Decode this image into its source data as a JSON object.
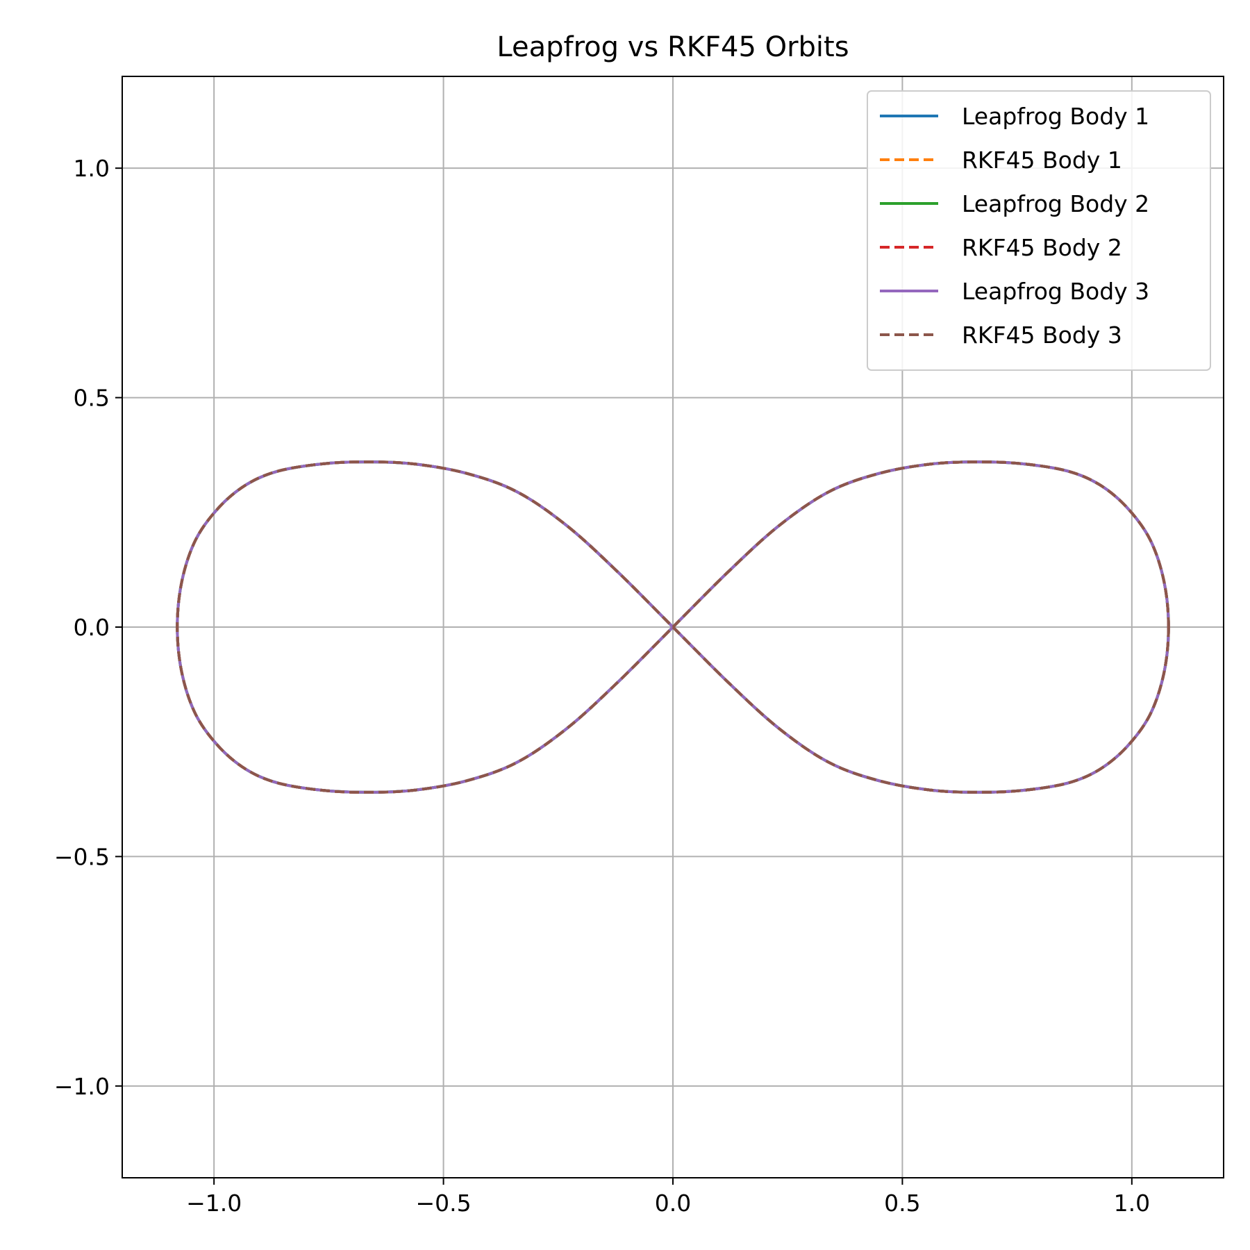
{
  "chart_data": {
    "type": "line",
    "title": "Leapfrog vs RKF45 Orbits",
    "xlabel": "",
    "ylabel": "",
    "xlim": [
      -1.2,
      1.2
    ],
    "ylim": [
      -1.2,
      1.2
    ],
    "xticks": [
      -1.0,
      -0.5,
      0.0,
      0.5,
      1.0
    ],
    "yticks": [
      -1.0,
      -0.5,
      0.0,
      0.5,
      1.0
    ],
    "xtick_labels": [
      "−1.0",
      "−0.5",
      "0.0",
      "0.5",
      "1.0"
    ],
    "ytick_labels": [
      "−1.0",
      "−0.5",
      "0.0",
      "0.5",
      "1.0"
    ],
    "grid": true,
    "legend_position": "top-right",
    "curve": {
      "shape": "figure-eight",
      "x_extent": [
        -1.08,
        1.08
      ],
      "y_extent": [
        -0.36,
        0.36
      ],
      "points": [
        [
          1.08,
          0.0
        ],
        [
          1.07,
          0.1
        ],
        [
          1.04,
          0.19
        ],
        [
          0.99,
          0.26
        ],
        [
          0.93,
          0.31
        ],
        [
          0.86,
          0.34
        ],
        [
          0.76,
          0.356
        ],
        [
          0.66,
          0.36
        ],
        [
          0.56,
          0.355
        ],
        [
          0.45,
          0.335
        ],
        [
          0.34,
          0.295
        ],
        [
          0.23,
          0.22
        ],
        [
          0.12,
          0.12
        ],
        [
          0.0,
          0.0
        ],
        [
          -0.12,
          -0.12
        ],
        [
          -0.23,
          -0.22
        ],
        [
          -0.34,
          -0.295
        ],
        [
          -0.45,
          -0.335
        ],
        [
          -0.56,
          -0.355
        ],
        [
          -0.66,
          -0.36
        ],
        [
          -0.76,
          -0.356
        ],
        [
          -0.86,
          -0.34
        ],
        [
          -0.93,
          -0.31
        ],
        [
          -0.99,
          -0.26
        ],
        [
          -1.04,
          -0.19
        ],
        [
          -1.07,
          -0.1
        ],
        [
          -1.08,
          0.0
        ],
        [
          -1.07,
          0.1
        ],
        [
          -1.04,
          0.19
        ],
        [
          -0.99,
          0.26
        ],
        [
          -0.93,
          0.31
        ],
        [
          -0.86,
          0.34
        ],
        [
          -0.76,
          0.356
        ],
        [
          -0.66,
          0.36
        ],
        [
          -0.56,
          0.355
        ],
        [
          -0.45,
          0.335
        ],
        [
          -0.34,
          0.295
        ],
        [
          -0.23,
          0.22
        ],
        [
          -0.12,
          0.12
        ],
        [
          0.0,
          0.0
        ],
        [
          0.12,
          -0.12
        ],
        [
          0.23,
          -0.22
        ],
        [
          0.34,
          -0.295
        ],
        [
          0.45,
          -0.335
        ],
        [
          0.56,
          -0.355
        ],
        [
          0.66,
          -0.36
        ],
        [
          0.76,
          -0.356
        ],
        [
          0.86,
          -0.34
        ],
        [
          0.93,
          -0.31
        ],
        [
          0.99,
          -0.26
        ],
        [
          1.04,
          -0.19
        ],
        [
          1.07,
          -0.1
        ],
        [
          1.08,
          0.0
        ]
      ]
    },
    "series": [
      {
        "name": "Leapfrog Body 1",
        "color": "#1f77b4",
        "style": "solid"
      },
      {
        "name": "RKF45 Body 1",
        "color": "#ff7f0e",
        "style": "dashed"
      },
      {
        "name": "Leapfrog Body 2",
        "color": "#2ca02c",
        "style": "solid"
      },
      {
        "name": "RKF45 Body 2",
        "color": "#d62728",
        "style": "dashed"
      },
      {
        "name": "Leapfrog Body 3",
        "color": "#9467bd",
        "style": "solid"
      },
      {
        "name": "RKF45 Body 3",
        "color": "#8c564b",
        "style": "dashed"
      }
    ]
  }
}
